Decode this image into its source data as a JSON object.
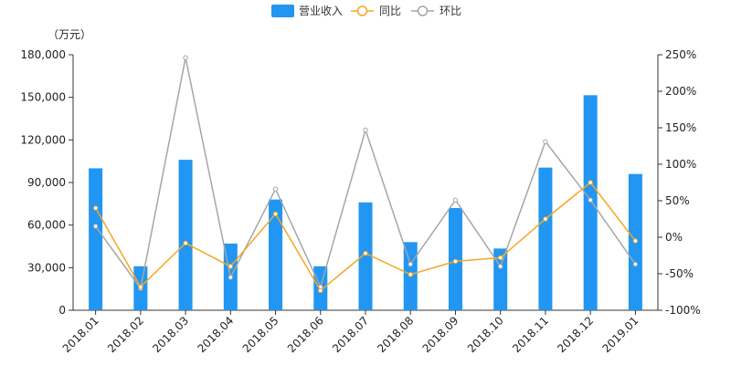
{
  "chart_data": {
    "type": "bar+line",
    "categories": [
      "2018.01",
      "2018.02",
      "2018.03",
      "2018.04",
      "2018.05",
      "2018.06",
      "2018.07",
      "2018.08",
      "2018.09",
      "2018.10",
      "2018.11",
      "2018.12",
      "2019.01"
    ],
    "unit_label": "（万元）",
    "left_axis": {
      "min": 0,
      "max": 180000,
      "ticks": [
        0,
        30000,
        60000,
        90000,
        120000,
        150000,
        180000
      ],
      "tick_labels": [
        "0",
        "30,000",
        "60,000",
        "90,000",
        "120,000",
        "150,000",
        "180,000"
      ]
    },
    "right_axis": {
      "min": -100,
      "max": 250,
      "ticks": [
        -100,
        -50,
        0,
        50,
        100,
        150,
        200,
        250
      ],
      "tick_labels": [
        "-100%",
        "-50%",
        "0%",
        "50%",
        "100%",
        "150%",
        "200%",
        "250%"
      ]
    },
    "series": [
      {
        "name": "营业收入",
        "type": "bar",
        "axis": "left",
        "color": "#2196F3",
        "values": [
          100000,
          31000,
          106000,
          47000,
          78000,
          31000,
          76000,
          48000,
          72000,
          43500,
          100500,
          151500,
          96000
        ]
      },
      {
        "name": "同比",
        "type": "line",
        "axis": "right",
        "color": "#F5A623",
        "values": [
          40,
          -68,
          -8,
          -40,
          32,
          -73,
          -22,
          -51,
          -33,
          -28,
          25,
          75,
          -5
        ]
      },
      {
        "name": "环比",
        "type": "line",
        "axis": "right",
        "color": "#A6A6A6",
        "values": [
          15,
          -70,
          246,
          -55,
          66,
          -68,
          147,
          -37,
          51,
          -40,
          131,
          51,
          -37
        ]
      }
    ]
  }
}
